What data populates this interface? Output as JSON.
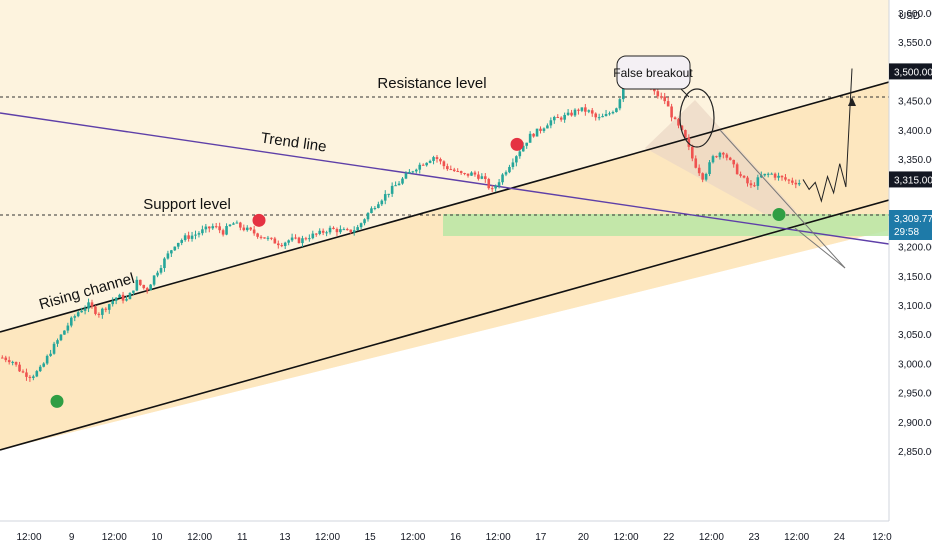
{
  "currency": "USD",
  "price_axis": {
    "ticks": [
      {
        "v": 3600,
        "label": "3,600.00"
      },
      {
        "v": 3550,
        "label": "3,550.00"
      },
      {
        "v": 3450,
        "label": "3,450.00"
      },
      {
        "v": 3400,
        "label": "3,400.00"
      },
      {
        "v": 3350,
        "label": "3,350.00"
      },
      {
        "v": 3250,
        "label": "3,250.00"
      },
      {
        "v": 3200,
        "label": "3,200.00"
      },
      {
        "v": 3150,
        "label": "3,150.00"
      },
      {
        "v": 3100,
        "label": "3,100.00"
      },
      {
        "v": 3050,
        "label": "3,050.00"
      },
      {
        "v": 3000,
        "label": "3,000.00"
      },
      {
        "v": 2950,
        "label": "2,950.00"
      },
      {
        "v": 2900,
        "label": "2,900.00"
      },
      {
        "v": 2850,
        "label": "2,850.00"
      }
    ],
    "badges": [
      {
        "v": 3500,
        "label": "3,500.00",
        "bg": "#131722",
        "fg": "#ffffff"
      },
      {
        "v": 3315,
        "label": "3,315.00",
        "bg": "#131722",
        "fg": "#ffffff"
      }
    ],
    "current_price": {
      "v": 3309.77,
      "label": "3,309.77",
      "countdown": "29:58",
      "bg": "#1e7aa8"
    }
  },
  "time_axis": [
    "12:00",
    "9",
    "12:00",
    "10",
    "12:00",
    "11",
    "13",
    "12:00",
    "15",
    "12:00",
    "16",
    "12:00",
    "17",
    "20",
    "12:00",
    "22",
    "12:00",
    "23",
    "12:00",
    "24",
    "12:0"
  ],
  "annotations": {
    "resistance_label": "Resistance level",
    "support_label": "Support level",
    "trend_label": "Trend line",
    "channel_label": "Rising channel",
    "false_breakout_label": "False breakout"
  },
  "levels": {
    "resistance": 3500,
    "support": 3315
  },
  "colors": {
    "bull": "#26a69a",
    "bear": "#ef5350",
    "trend_line": "#5e3fa8",
    "support_zone": "#b9e6a4",
    "channel_fill": "#fde7bf",
    "red_marker": "#e53242",
    "green_marker": "#2f9e44",
    "badge_blue": "#1e7aa8"
  },
  "chart_data": {
    "type": "candlestick",
    "symbol_currency": "USD",
    "ylim": [
      2835,
      3640
    ],
    "resistance_level": 3500,
    "support_level": 3315,
    "support_zone": [
      3285,
      3317
    ],
    "close_path": [
      3010,
      3005,
      2985,
      2978,
      2990,
      3020,
      3045,
      3070,
      3090,
      3100,
      3085,
      3100,
      3115,
      3108,
      3140,
      3125,
      3155,
      3180,
      3205,
      3215,
      3220,
      3228,
      3235,
      3225,
      3240,
      3232,
      3225,
      3218,
      3210,
      3205,
      3212,
      3210,
      3218,
      3222,
      3230,
      3228,
      3225,
      3232,
      3255,
      3275,
      3290,
      3305,
      3320,
      3335,
      3345,
      3355,
      3338,
      3330,
      3322,
      3325,
      3318,
      3295,
      3320,
      3345,
      3368,
      3390,
      3400,
      3415,
      3420,
      3425,
      3435,
      3432,
      3418,
      3425,
      3440,
      3490,
      3500,
      3475,
      3462,
      3450,
      3415,
      3390,
      3345,
      3318,
      3352,
      3365,
      3340,
      3318,
      3302,
      3320,
      3325,
      3318,
      3312,
      3309.77
    ],
    "projection_path": [
      3315,
      3298,
      3310,
      3278,
      3320,
      3292,
      3342,
      3302,
      3505
    ],
    "red_markers": [
      3245,
      3375
    ],
    "green_markers": [
      2935,
      3255
    ]
  }
}
